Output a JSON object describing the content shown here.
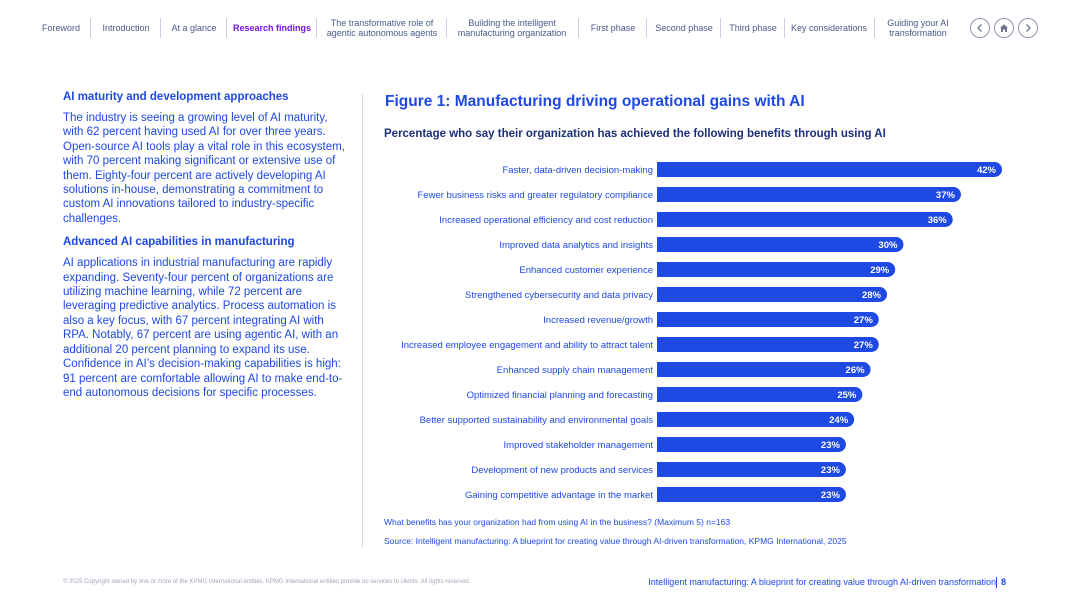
{
  "nav": {
    "items": [
      {
        "label": "Foreword",
        "active": false
      },
      {
        "label": "Introduction",
        "active": false
      },
      {
        "label": "At a glance",
        "active": false
      },
      {
        "label": "Research findings",
        "active": true
      },
      {
        "label": "The transformative role of agentic autonomous agents",
        "active": false
      },
      {
        "label": "Building the intelligent manufacturing organization",
        "active": false
      },
      {
        "label": "First phase",
        "active": false
      },
      {
        "label": "Second phase",
        "active": false
      },
      {
        "label": "Third phase",
        "active": false
      },
      {
        "label": "Key considerations",
        "active": false
      },
      {
        "label": "Guiding your AI transformation",
        "active": false
      }
    ],
    "buttons": [
      "chevron-left-icon",
      "home-icon",
      "chevron-right-icon"
    ]
  },
  "left": {
    "heading1": "AI maturity and development approaches",
    "para1": "The industry is seeing a growing level of AI maturity, with 62 percent having used AI for over three years. Open-source AI tools play a vital role in this ecosystem, with 70 percent making significant or extensive use of them. Eighty-four percent are actively developing AI solutions in-house, demonstrating a commitment to custom AI innovations tailored to industry-specific challenges.",
    "heading2": "Advanced AI capabilities in manufacturing",
    "para2": "AI applications in industrial manufacturing are rapidly expanding. Seventy-four percent of organizations are utilizing machine learning, while 72 percent are leveraging predictive analytics. Process automation is also a key focus, with 67 percent integrating AI with RPA. Notably, 67 percent are using agentic AI, with an additional 20 percent planning to expand its use. Confidence in AI’s decision-making capabilities is high: 91 percent are comfortable allowing AI to make end-to-end autonomous decisions for specific processes."
  },
  "chart_data": {
    "type": "bar",
    "orientation": "horizontal",
    "title": "Figure 1: Manufacturing driving operational gains with AI",
    "subtitle": "Percentage who say their organization has achieved the following benefits through using AI",
    "categories": [
      "Faster, data-driven decision-making",
      "Fewer business risks and greater regulatory compliance",
      "Increased operational efficiency and cost reduction",
      "Improved data analytics and insights",
      "Enhanced customer experience",
      "Strengthened cybersecurity and data privacy",
      "Increased revenue/growth",
      "Increased employee engagement and ability to attract talent",
      "Enhanced supply chain management",
      "Optimized financial planning and forecasting",
      "Better supported sustainability and environmental goals",
      "Improved stakeholder management",
      "Development of new products and services",
      "Gaining competitive advantage in the market"
    ],
    "values": [
      42,
      37,
      36,
      30,
      29,
      28,
      27,
      27,
      26,
      25,
      24,
      23,
      23,
      23
    ],
    "value_suffix": "%",
    "xlim": [
      0,
      42
    ],
    "bar_color": "#1e49e2",
    "label_color": "#ffffff",
    "xlabel": "",
    "ylabel": ""
  },
  "notes": {
    "question": "What benefits has your organization had from using AI in the business? (Maximum 5) n=163",
    "source": "Source: Intelligent manufacturing: A blueprint for creating value through AI-driven transformation, KPMG International, 2025"
  },
  "footer": {
    "copyright": "© 2025 Copyright owned by one or more of the KPMG International entities. KPMG International entities provide no services to clients. All rights reserved.",
    "title": "Intelligent manufacturing: A blueprint for creating value through AI-driven transformation",
    "page": "8"
  }
}
